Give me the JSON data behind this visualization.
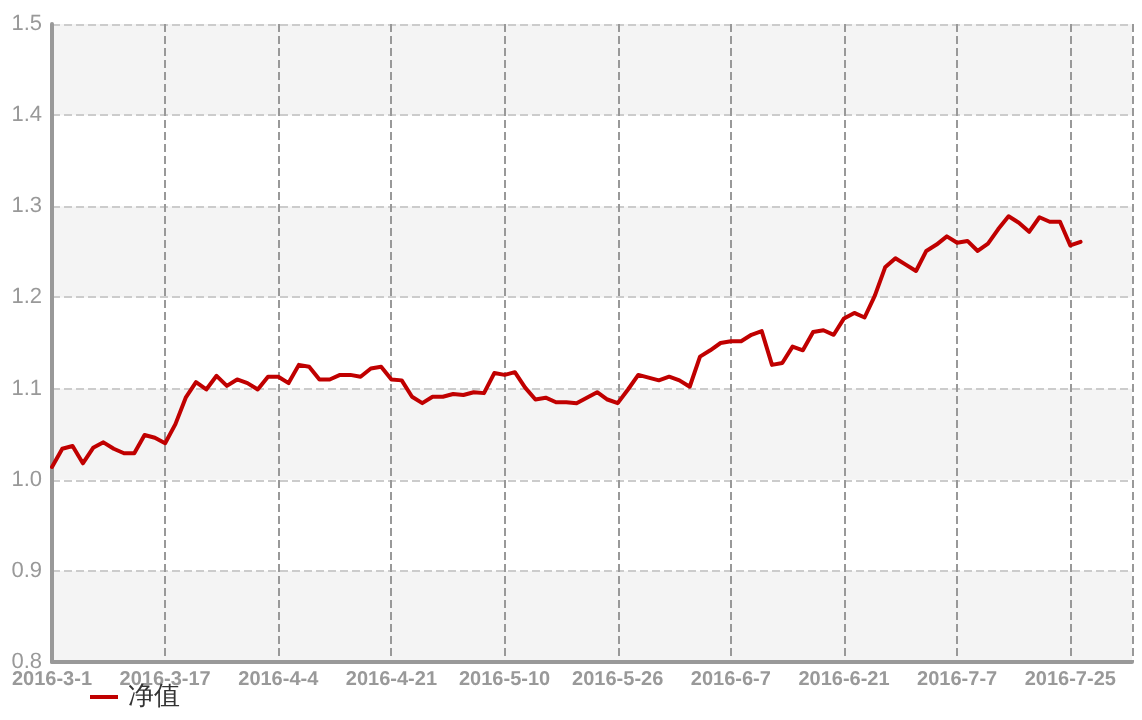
{
  "chart_data": {
    "type": "line",
    "categories": [
      "2016-3-1",
      null,
      null,
      null,
      null,
      null,
      null,
      null,
      null,
      null,
      null,
      "2016-3-17",
      null,
      null,
      null,
      null,
      null,
      null,
      null,
      null,
      null,
      null,
      "2016-4-4",
      null,
      null,
      null,
      null,
      null,
      null,
      null,
      null,
      null,
      null,
      "2016-4-21",
      null,
      null,
      null,
      null,
      null,
      null,
      null,
      null,
      null,
      null,
      "2016-5-10",
      null,
      null,
      null,
      null,
      null,
      null,
      null,
      null,
      null,
      null,
      "2016-5-26",
      null,
      null,
      null,
      null,
      null,
      null,
      null,
      null,
      null,
      null,
      "2016-6-7",
      null,
      null,
      null,
      null,
      null,
      null,
      null,
      null,
      null,
      null,
      "2016-6-21",
      null,
      null,
      null,
      null,
      null,
      null,
      null,
      null,
      null,
      null,
      "2016-7-7",
      null,
      null,
      null,
      null,
      null,
      null,
      null,
      null,
      null,
      null,
      "2016-7-25",
      null,
      null,
      null,
      null,
      null,
      null
    ],
    "series": [
      {
        "name": "净值",
        "color": "#c00000",
        "values": [
          1.014,
          1.034,
          1.037,
          1.018,
          1.035,
          1.041,
          1.034,
          1.029,
          1.029,
          1.049,
          1.046,
          1.04,
          1.061,
          1.09,
          1.107,
          1.099,
          1.114,
          1.103,
          1.11,
          1.106,
          1.099,
          1.113,
          1.113,
          1.106,
          1.126,
          1.124,
          1.11,
          1.11,
          1.115,
          1.115,
          1.113,
          1.122,
          1.124,
          1.11,
          1.109,
          1.091,
          1.084,
          1.091,
          1.091,
          1.094,
          1.093,
          1.096,
          1.095,
          1.117,
          1.115,
          1.118,
          1.101,
          1.088,
          1.09,
          1.085,
          1.085,
          1.084,
          1.09,
          1.096,
          1.088,
          1.084,
          1.099,
          1.115,
          1.112,
          1.109,
          1.113,
          1.109,
          1.102,
          1.135,
          1.142,
          1.15,
          1.152,
          1.152,
          1.159,
          1.163,
          1.126,
          1.128,
          1.146,
          1.142,
          1.162,
          1.164,
          1.159,
          1.177,
          1.183,
          1.178,
          1.202,
          1.233,
          1.243,
          1.236,
          1.229,
          1.251,
          1.258,
          1.267,
          1.26,
          1.262,
          1.251,
          1.259,
          1.275,
          1.289,
          1.282,
          1.272,
          1.288,
          1.283,
          1.283,
          1.257,
          1.261,
          null,
          null,
          null,
          null,
          null
        ]
      }
    ],
    "ylim": [
      0.8,
      1.5
    ],
    "yticks": [
      {
        "value": 0.8,
        "label": "0.8"
      },
      {
        "value": 0.9,
        "label": "0.9"
      },
      {
        "value": 1,
        "label": "1.0"
      },
      {
        "value": 1.1,
        "label": "1.1"
      },
      {
        "value": 1.2,
        "label": "1.2"
      },
      {
        "value": 1.3,
        "label": "1.3"
      },
      {
        "value": 1.4,
        "label": "1.4"
      },
      {
        "value": 1.5,
        "label": "1.5"
      }
    ],
    "grid": true,
    "legend": "bottom left",
    "marker": "none",
    "line_style": "solid"
  }
}
